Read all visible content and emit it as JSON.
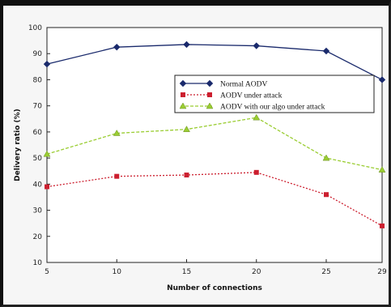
{
  "chart_data": {
    "type": "line",
    "title": "",
    "xlabel": "Number of connections",
    "ylabel": "Delivery ratio (%)",
    "x": [
      5,
      10,
      15,
      20,
      25,
      29
    ],
    "x_tick_labels": [
      "5",
      "10",
      "15",
      "20",
      "25",
      "29"
    ],
    "ylim": [
      10,
      100
    ],
    "y_ticks": [
      10,
      20,
      30,
      40,
      50,
      60,
      70,
      80,
      90,
      100
    ],
    "grid": false,
    "legend_position": "upper-right",
    "series": [
      {
        "name": "Normal AODV",
        "values": [
          86,
          92.5,
          93.5,
          93,
          91,
          80
        ],
        "color": "#1a2a6c",
        "marker": "diamond",
        "dash": "solid"
      },
      {
        "name": "AODV under attack",
        "values": [
          39,
          43,
          43.5,
          44.5,
          36,
          24
        ],
        "color": "#cc1f2f",
        "marker": "square",
        "dash": "dotted"
      },
      {
        "name": "AODV with our algo under attack",
        "values": [
          51.5,
          59.5,
          61,
          65.5,
          50,
          45.5
        ],
        "color": "#9acd32",
        "marker": "triangle",
        "dash": "dashed"
      }
    ]
  }
}
